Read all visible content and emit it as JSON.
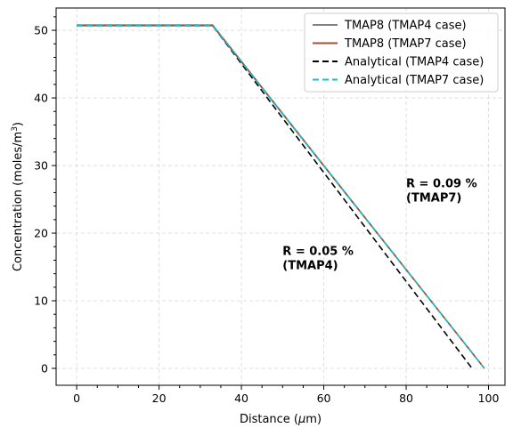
{
  "chart_data": {
    "type": "line",
    "title": "",
    "xlabel_prefix": "Distance (",
    "xlabel_mu": "μ",
    "xlabel_suffix": "m)",
    "ylabel_main": "Concentration (moles/m",
    "ylabel_sup": "3",
    "ylabel_end": ")",
    "xlim": [
      -5,
      104
    ],
    "ylim": [
      -2.5,
      53.3
    ],
    "xticks": [
      0,
      20,
      40,
      60,
      80,
      100
    ],
    "yticks": [
      0,
      10,
      20,
      30,
      40,
      50
    ],
    "grid": true,
    "legend_position": "top-right",
    "series": [
      {
        "name": "TMAP8 (TMAP4 case)",
        "color": "#808080",
        "style": "solid",
        "x": [
          0,
          33,
          99
        ],
        "y": [
          50.8,
          50.8,
          0
        ]
      },
      {
        "name": "TMAP8 (TMAP7 case)",
        "color": "#a0522d",
        "style": "solid",
        "x": [
          0,
          33,
          99
        ],
        "y": [
          50.7,
          50.7,
          0
        ]
      },
      {
        "name": "Analytical (TMAP4 case)",
        "color": "#000000",
        "style": "dashed",
        "x": [
          0,
          33,
          96
        ],
        "y": [
          50.7,
          50.7,
          0
        ]
      },
      {
        "name": "Analytical (TMAP7 case)",
        "color": "#17becf",
        "style": "dashed",
        "x": [
          0,
          33,
          99
        ],
        "y": [
          50.7,
          50.7,
          0
        ]
      }
    ],
    "annotations": [
      {
        "line1": "R = 0.05 %",
        "line2": "(TMAP4)",
        "x": 50,
        "y": 16.8
      },
      {
        "line1": "R = 0.09 %",
        "line2": "(TMAP7)",
        "x": 80,
        "y": 26.8
      }
    ]
  }
}
